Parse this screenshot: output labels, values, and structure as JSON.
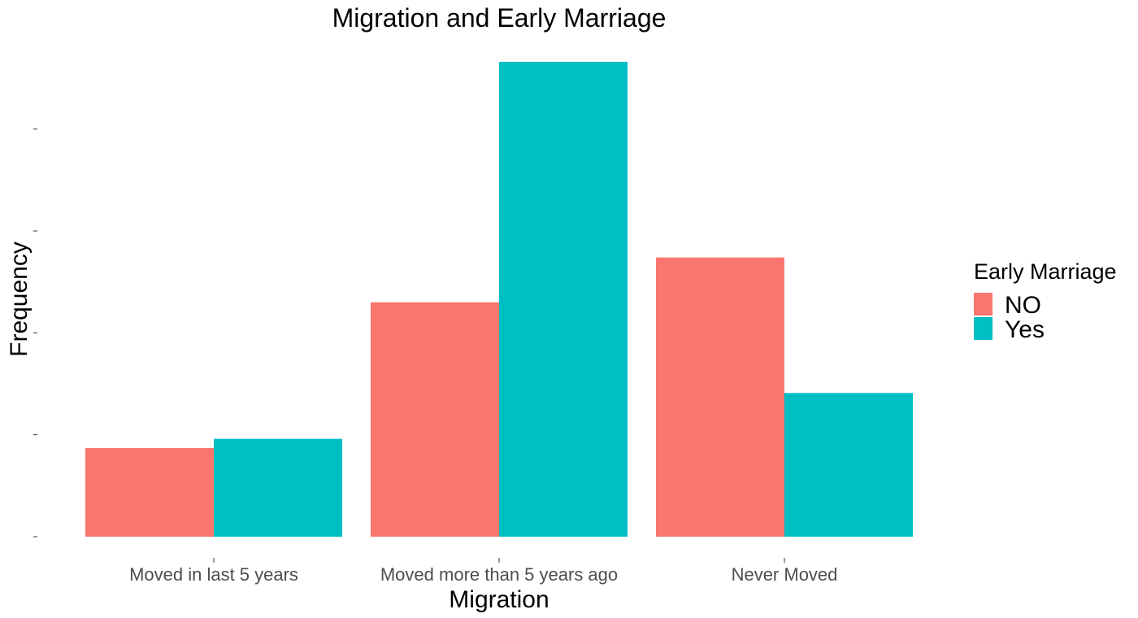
{
  "chart_data": {
    "type": "bar",
    "title": "Migration and Early Marriage",
    "xlabel": "Migration",
    "ylabel": "Frequency",
    "categories": [
      "Moved in last 5 years",
      "Moved more than 5 years ago",
      "Never Moved"
    ],
    "series": [
      {
        "name": "NO",
        "color": "#F8766D",
        "values": [
          0.87,
          2.3,
          2.74
        ]
      },
      {
        "name": "Yes",
        "color": "#00BFC4",
        "values": [
          0.96,
          4.66,
          1.41
        ]
      }
    ],
    "ylim": [
      0,
      4.66
    ],
    "yticks": [
      0,
      1,
      2,
      3,
      4
    ],
    "ytick_labels_visible": false,
    "grid": false,
    "legend": {
      "title": "Early Marriage",
      "position": "right"
    }
  }
}
